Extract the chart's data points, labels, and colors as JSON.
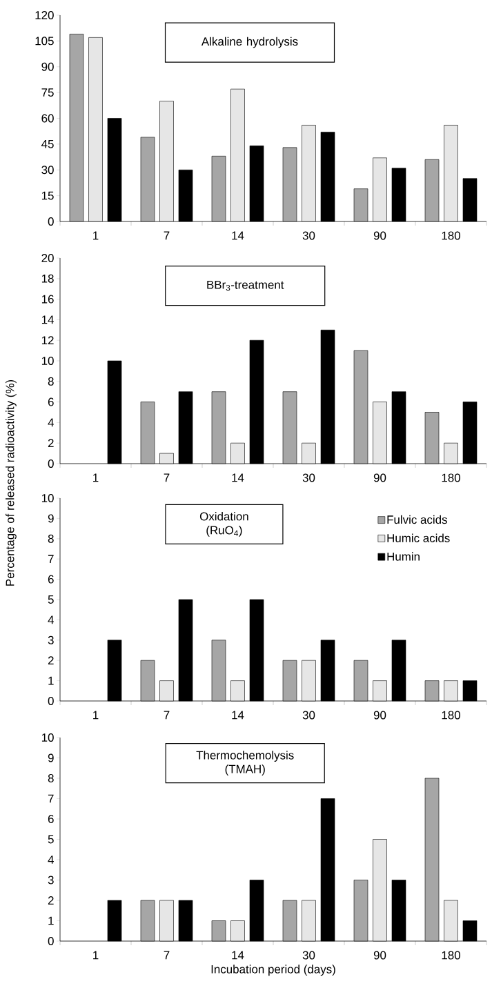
{
  "chart_data": [
    {
      "type": "bar",
      "title": "Alkaline hydrolysis",
      "categories": [
        "1",
        "7",
        "14",
        "30",
        "90",
        "180"
      ],
      "series": [
        {
          "color": "#a6a6a6",
          "values": [
            109,
            49,
            38,
            43,
            19,
            36
          ]
        },
        {
          "color": "#e6e6e6",
          "values": [
            107,
            70,
            77,
            56,
            37,
            56
          ]
        },
        {
          "color": "#000000",
          "values": [
            60,
            30,
            44,
            52,
            31,
            25
          ]
        }
      ],
      "ylim": [
        0,
        120
      ],
      "yticks": [
        0,
        15,
        30,
        45,
        60,
        75,
        90,
        105,
        120
      ]
    },
    {
      "type": "bar",
      "title": "BBr$_{3}$-treatment",
      "categories": [
        "1",
        "7",
        "14",
        "30",
        "90",
        "180"
      ],
      "series": [
        {
          "color": "#a6a6a6",
          "values": [
            null,
            6,
            7,
            7,
            11,
            5
          ]
        },
        {
          "color": "#e6e6e6",
          "values": [
            null,
            1,
            2,
            2,
            6,
            2
          ]
        },
        {
          "color": "#000000",
          "values": [
            10,
            7,
            12,
            13,
            7,
            6
          ]
        }
      ],
      "ylim": [
        0,
        20
      ],
      "yticks": [
        0,
        2,
        4,
        6,
        8,
        10,
        12,
        14,
        16,
        18,
        20
      ]
    },
    {
      "type": "bar",
      "title": "Oxidation (RuO$_{4}$)",
      "ylabel": "Percentage of released radioactivity (%)",
      "categories": [
        "1",
        "7",
        "14",
        "30",
        "90",
        "180"
      ],
      "series": [
        {
          "name": "Fulvic acids",
          "color": "#a6a6a6",
          "values": [
            null,
            2,
            3,
            2,
            2,
            1
          ]
        },
        {
          "name": "Humic acids",
          "color": "#e6e6e6",
          "values": [
            null,
            1,
            1,
            2,
            1,
            1
          ]
        },
        {
          "name": "Humin",
          "color": "#000000",
          "values": [
            3,
            5,
            5,
            3,
            3,
            1
          ]
        }
      ],
      "ylim": [
        0,
        10
      ],
      "yticks": [
        0,
        1,
        2,
        3,
        4,
        5,
        6,
        7,
        8,
        9,
        10
      ],
      "legend": "top right"
    },
    {
      "type": "bar",
      "title": "Thermochemolysis (TMAH)",
      "xlabel": "Incubation period (days)",
      "categories": [
        "1",
        "7",
        "14",
        "30",
        "90",
        "180"
      ],
      "series": [
        {
          "color": "#a6a6a6",
          "values": [
            null,
            2,
            1,
            2,
            3,
            8
          ]
        },
        {
          "color": "#e6e6e6",
          "values": [
            null,
            2,
            1,
            2,
            5,
            2
          ]
        },
        {
          "color": "#000000",
          "values": [
            2,
            2,
            3,
            7,
            3,
            1
          ]
        }
      ],
      "ylim": [
        0,
        10
      ],
      "yticks": [
        0,
        1,
        2,
        3,
        4,
        5,
        6,
        7,
        8,
        9,
        10
      ]
    }
  ]
}
